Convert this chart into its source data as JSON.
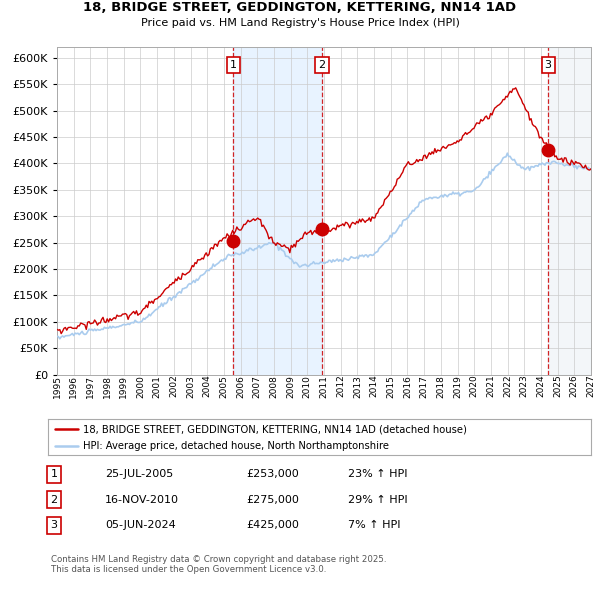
{
  "title_line1": "18, BRIDGE STREET, GEDDINGTON, KETTERING, NN14 1AD",
  "title_line2": "Price paid vs. HM Land Registry's House Price Index (HPI)",
  "background_color": "#ffffff",
  "plot_bg_color": "#ffffff",
  "grid_color": "#cccccc",
  "hpi_line_color": "#aaccee",
  "price_line_color": "#cc0000",
  "sale1": {
    "date_x": 2005.56,
    "price": 253000
  },
  "sale2": {
    "date_x": 2010.88,
    "price": 275000
  },
  "sale3": {
    "date_x": 2024.43,
    "price": 425000
  },
  "legend_entries": [
    "18, BRIDGE STREET, GEDDINGTON, KETTERING, NN14 1AD (detached house)",
    "HPI: Average price, detached house, North Northamptonshire"
  ],
  "table_rows": [
    {
      "num": "1",
      "date": "25-JUL-2005",
      "price": "£253,000",
      "hpi": "23% ↑ HPI"
    },
    {
      "num": "2",
      "date": "16-NOV-2010",
      "price": "£275,000",
      "hpi": "29% ↑ HPI"
    },
    {
      "num": "3",
      "date": "05-JUN-2024",
      "price": "£425,000",
      "hpi": "7% ↑ HPI"
    }
  ],
  "footnote": "Contains HM Land Registry data © Crown copyright and database right 2025.\nThis data is licensed under the Open Government Licence v3.0.",
  "xmin": 1995,
  "xmax": 2027,
  "ymin": 0,
  "ymax": 620000,
  "yticks": [
    0,
    50000,
    100000,
    150000,
    200000,
    250000,
    300000,
    350000,
    400000,
    450000,
    500000,
    550000,
    600000
  ]
}
